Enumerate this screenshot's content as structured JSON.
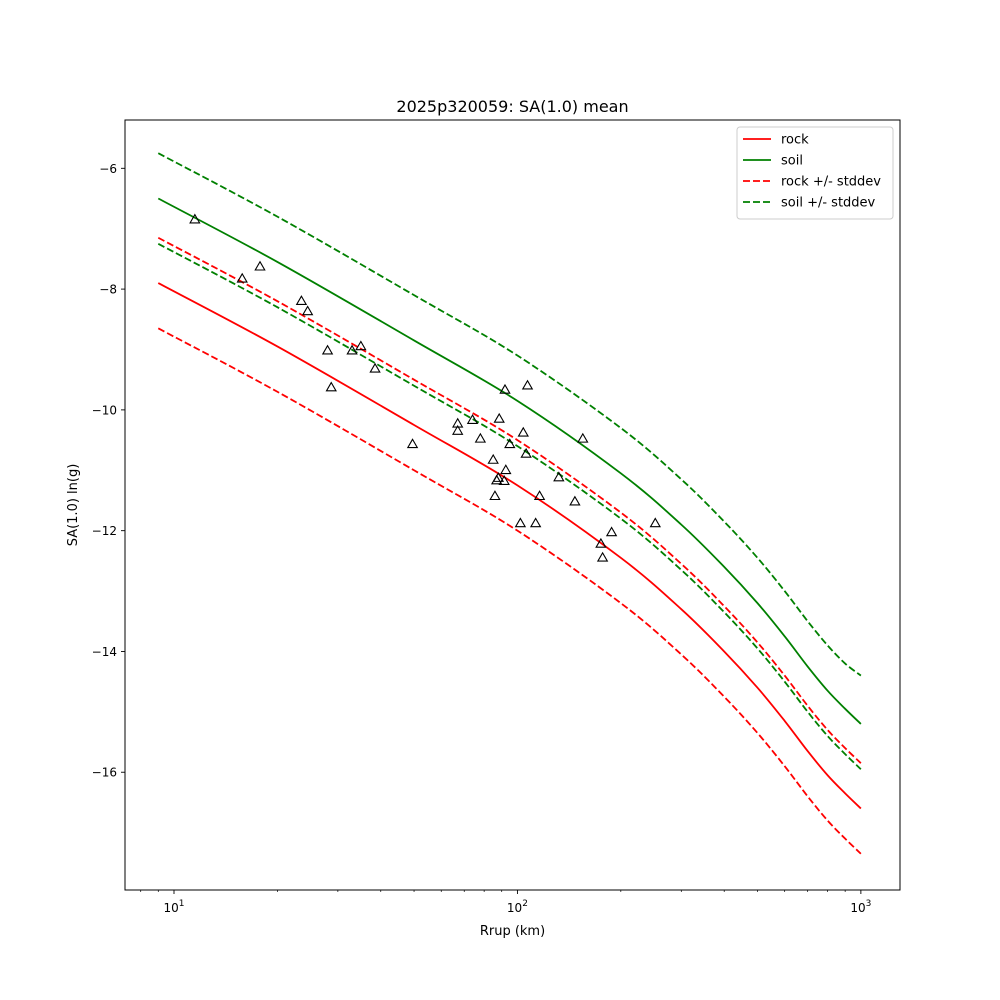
{
  "chart_data": {
    "type": "line",
    "title": "2025p320059: SA(1.0) mean",
    "xlabel": "Rrup (km)",
    "ylabel": "SA(1.0) ln(g)",
    "xscale": "log",
    "xlim": [
      7.2,
      1300
    ],
    "ylim": [
      -17.95,
      -5.2
    ],
    "xticks": [
      {
        "value": 10,
        "base": "10",
        "exp": "1"
      },
      {
        "value": 100,
        "base": "10",
        "exp": "2"
      },
      {
        "value": 1000,
        "base": "10",
        "exp": "3"
      }
    ],
    "yticks": [
      -6,
      -8,
      -10,
      -12,
      -14,
      -16
    ],
    "grid": false,
    "legend_position": "upper right",
    "series": [
      {
        "name": "rock",
        "color": "#ff0000",
        "style": "solid",
        "x": [
          9,
          20,
          50,
          100,
          200,
          300,
          400,
          500,
          600,
          700,
          800,
          900,
          1000
        ],
        "y": [
          -7.9,
          -8.95,
          -10.25,
          -11.25,
          -12.45,
          -13.3,
          -14.0,
          -14.6,
          -15.15,
          -15.65,
          -16.05,
          -16.35,
          -16.6
        ]
      },
      {
        "name": "soil",
        "color": "#008000",
        "style": "solid",
        "x": [
          9,
          20,
          50,
          100,
          200,
          300,
          400,
          500,
          600,
          700,
          800,
          900,
          1000
        ],
        "y": [
          -6.5,
          -7.55,
          -8.85,
          -9.85,
          -11.05,
          -11.9,
          -12.6,
          -13.2,
          -13.75,
          -14.25,
          -14.65,
          -14.95,
          -15.2
        ]
      },
      {
        "name": "rock +/- stddev",
        "color": "#ff0000",
        "style": "dashed",
        "x": [
          9,
          20,
          50,
          100,
          200,
          300,
          400,
          500,
          600,
          700,
          800,
          900,
          1000
        ],
        "y": [
          -7.15,
          -8.2,
          -9.5,
          -10.5,
          -11.7,
          -12.55,
          -13.25,
          -13.85,
          -14.4,
          -14.9,
          -15.3,
          -15.6,
          -15.85
        ]
      },
      {
        "name": "",
        "color": "#ff0000",
        "style": "dashed",
        "x": [
          9,
          20,
          50,
          100,
          200,
          300,
          400,
          500,
          600,
          700,
          800,
          900,
          1000
        ],
        "y": [
          -8.65,
          -9.7,
          -11.0,
          -12.0,
          -13.2,
          -14.05,
          -14.75,
          -15.35,
          -15.9,
          -16.4,
          -16.8,
          -17.1,
          -17.35
        ]
      },
      {
        "name": "soil +/- stddev",
        "color": "#008000",
        "style": "dashed",
        "x": [
          9,
          20,
          50,
          100,
          200,
          300,
          400,
          500,
          600,
          700,
          800,
          900,
          1000
        ],
        "y": [
          -5.75,
          -6.8,
          -8.1,
          -9.1,
          -10.3,
          -11.15,
          -11.85,
          -12.45,
          -13.0,
          -13.5,
          -13.9,
          -14.2,
          -14.4
        ]
      },
      {
        "name": "",
        "color": "#008000",
        "style": "dashed",
        "x": [
          9,
          20,
          50,
          100,
          200,
          300,
          400,
          500,
          600,
          700,
          800,
          900,
          1000
        ],
        "y": [
          -7.25,
          -8.3,
          -9.6,
          -10.6,
          -11.8,
          -12.65,
          -13.35,
          -13.95,
          -14.5,
          -15.0,
          -15.4,
          -15.7,
          -15.95
        ]
      }
    ],
    "observations": {
      "marker": "triangle-open",
      "color": "#000000",
      "points": [
        [
          11.5,
          -6.85
        ],
        [
          15.8,
          -7.83
        ],
        [
          17.8,
          -7.63
        ],
        [
          23.5,
          -8.2
        ],
        [
          24.5,
          -8.37
        ],
        [
          28.0,
          -9.02
        ],
        [
          28.7,
          -9.63
        ],
        [
          33.0,
          -9.02
        ],
        [
          35.0,
          -8.95
        ],
        [
          38.5,
          -9.32
        ],
        [
          49.5,
          -10.57
        ],
        [
          67.0,
          -10.23
        ],
        [
          67.0,
          -10.35
        ],
        [
          74.0,
          -10.17
        ],
        [
          78.0,
          -10.48
        ],
        [
          85.0,
          -10.83
        ],
        [
          86.0,
          -11.43
        ],
        [
          87.0,
          -11.17
        ],
        [
          88.0,
          -11.13
        ],
        [
          88.5,
          -10.15
        ],
        [
          91.5,
          -11.18
        ],
        [
          92.0,
          -9.67
        ],
        [
          92.5,
          -11.0
        ],
        [
          95.0,
          -10.57
        ],
        [
          102.0,
          -11.88
        ],
        [
          104.0,
          -10.38
        ],
        [
          106.0,
          -10.73
        ],
        [
          107.0,
          -9.6
        ],
        [
          113.0,
          -11.88
        ],
        [
          116.0,
          -11.43
        ],
        [
          132.0,
          -11.12
        ],
        [
          147.0,
          -11.52
        ],
        [
          155.0,
          -10.48
        ],
        [
          175.0,
          -12.22
        ],
        [
          177.0,
          -12.45
        ],
        [
          188.0,
          -12.03
        ],
        [
          252.0,
          -11.88
        ]
      ]
    }
  }
}
